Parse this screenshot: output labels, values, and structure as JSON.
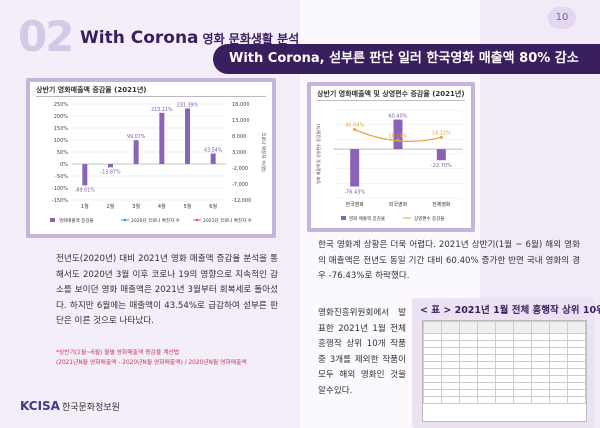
{
  "page": {
    "section_number": "02",
    "section_title": "With Corona",
    "section_subtitle": "영화 문화생활 분석",
    "page_number": "10",
    "headline": "With Corona, 섣부른 판단 일러 한국영화 매출액 80% 감소"
  },
  "chart_data": [
    {
      "type": "bar",
      "title": "상반기 영화매출액 증감율 (2021년)",
      "categories": [
        "1월",
        "2월",
        "3월",
        "4월",
        "5월",
        "6월"
      ],
      "series": [
        {
          "name": "영화매출액 증감율",
          "type": "bar",
          "axis": "left",
          "values": [
            -89.01,
            -13.87,
            99.07,
            213.21,
            231.39,
            43.54
          ]
        },
        {
          "name": "2020년 코로나 확진자 수",
          "type": "line",
          "axis": "right",
          "values": [
            null,
            null,
            null,
            null,
            null,
            null
          ]
        },
        {
          "name": "2021년 코로나 확진자 수",
          "type": "line",
          "axis": "right",
          "values": [
            null,
            null,
            null,
            null,
            null,
            null
          ]
        }
      ],
      "data_labels": [
        "-89.01%",
        "-13.87%",
        "99.07%",
        "213.21%",
        "231.39%",
        "43.54%"
      ],
      "ylim": [
        -150,
        250
      ],
      "yticks": [
        "250%",
        "200%",
        "150%",
        "100%",
        "50%",
        "0%",
        "-50%",
        "-100%",
        "-150%"
      ],
      "y2ticks": [
        "18,000",
        "13,000",
        "8,000",
        "3,000",
        "-2,000",
        "-7,000",
        "-12,000"
      ],
      "y2label": "코로나 확진자 수(명)",
      "legend_position": "bottom",
      "colors": {
        "bar": "#8a63b8",
        "line2020": "#4a90d9",
        "line2021": "#d9534f"
      }
    },
    {
      "type": "bar",
      "title": "상반기 영화매출액 및 상영편수 증감율 (2021년)",
      "categories": [
        "한국영화",
        "외국영화",
        "전체영화"
      ],
      "series": [
        {
          "name": "영화 매출액 증감율",
          "type": "bar",
          "values": [
            -76.43,
            60.4,
            -22.7
          ]
        },
        {
          "name": "상영편수 증감율",
          "type": "line",
          "values": [
            40.04,
            18.1,
            24.12
          ]
        }
      ],
      "bar_labels": [
        "-76.43%",
        "60.40%",
        "-22.70%"
      ],
      "line_labels": [
        "40.04%",
        "18.10%",
        "24.12%"
      ],
      "ylabel": "영화 매출액 및 상영편수 증감율(%)",
      "legend_position": "bottom",
      "colors": {
        "bar": "#8a63b8",
        "line": "#e8a23a"
      }
    }
  ],
  "left_text": "전년도(2020년) 대비 2021년 영화 매출액 증감율 분석을 통해서도 2020년 3월 이후 코로나 19의 영향으로 지속적인 감소를 보이던 영화 매출액은 2021년 3월부터 회복세로 돌아섰다.  하지만 6월에는 매출액이 43.54%로 급감하여 섣부른 판단은 이른 것으로 나타났다.",
  "notes": [
    "*상반기(1월~6월) 월별 영화매출액 증감율 계산법",
    "(2021년N월 영화매출액 - 2020년N월 영화매출액) / 2020년N월 영화매출액"
  ],
  "right_text_1": "한국 영화계 상황은 더욱 어렵다. 2021년 상반기(1월 ~ 6월) 해외 영화의 매출액은 전년도 동일 기간 대비 60.40% 증가한 반면 국내 영화의 경우 -76.43%로 하락했다.",
  "right_text_2": "영화진흥위원회에서 발표한 2021년 1월 전체 흥행작 상위 10개 작품 중 3개를 제외한 작품이 모두 해외 영화인 것을 알수있다.",
  "table_title": "< 표 > 2021년 1월 전체 흥행작 상위 10위",
  "logo": {
    "mark": "KCISA",
    "name": "한국문화정보원"
  }
}
